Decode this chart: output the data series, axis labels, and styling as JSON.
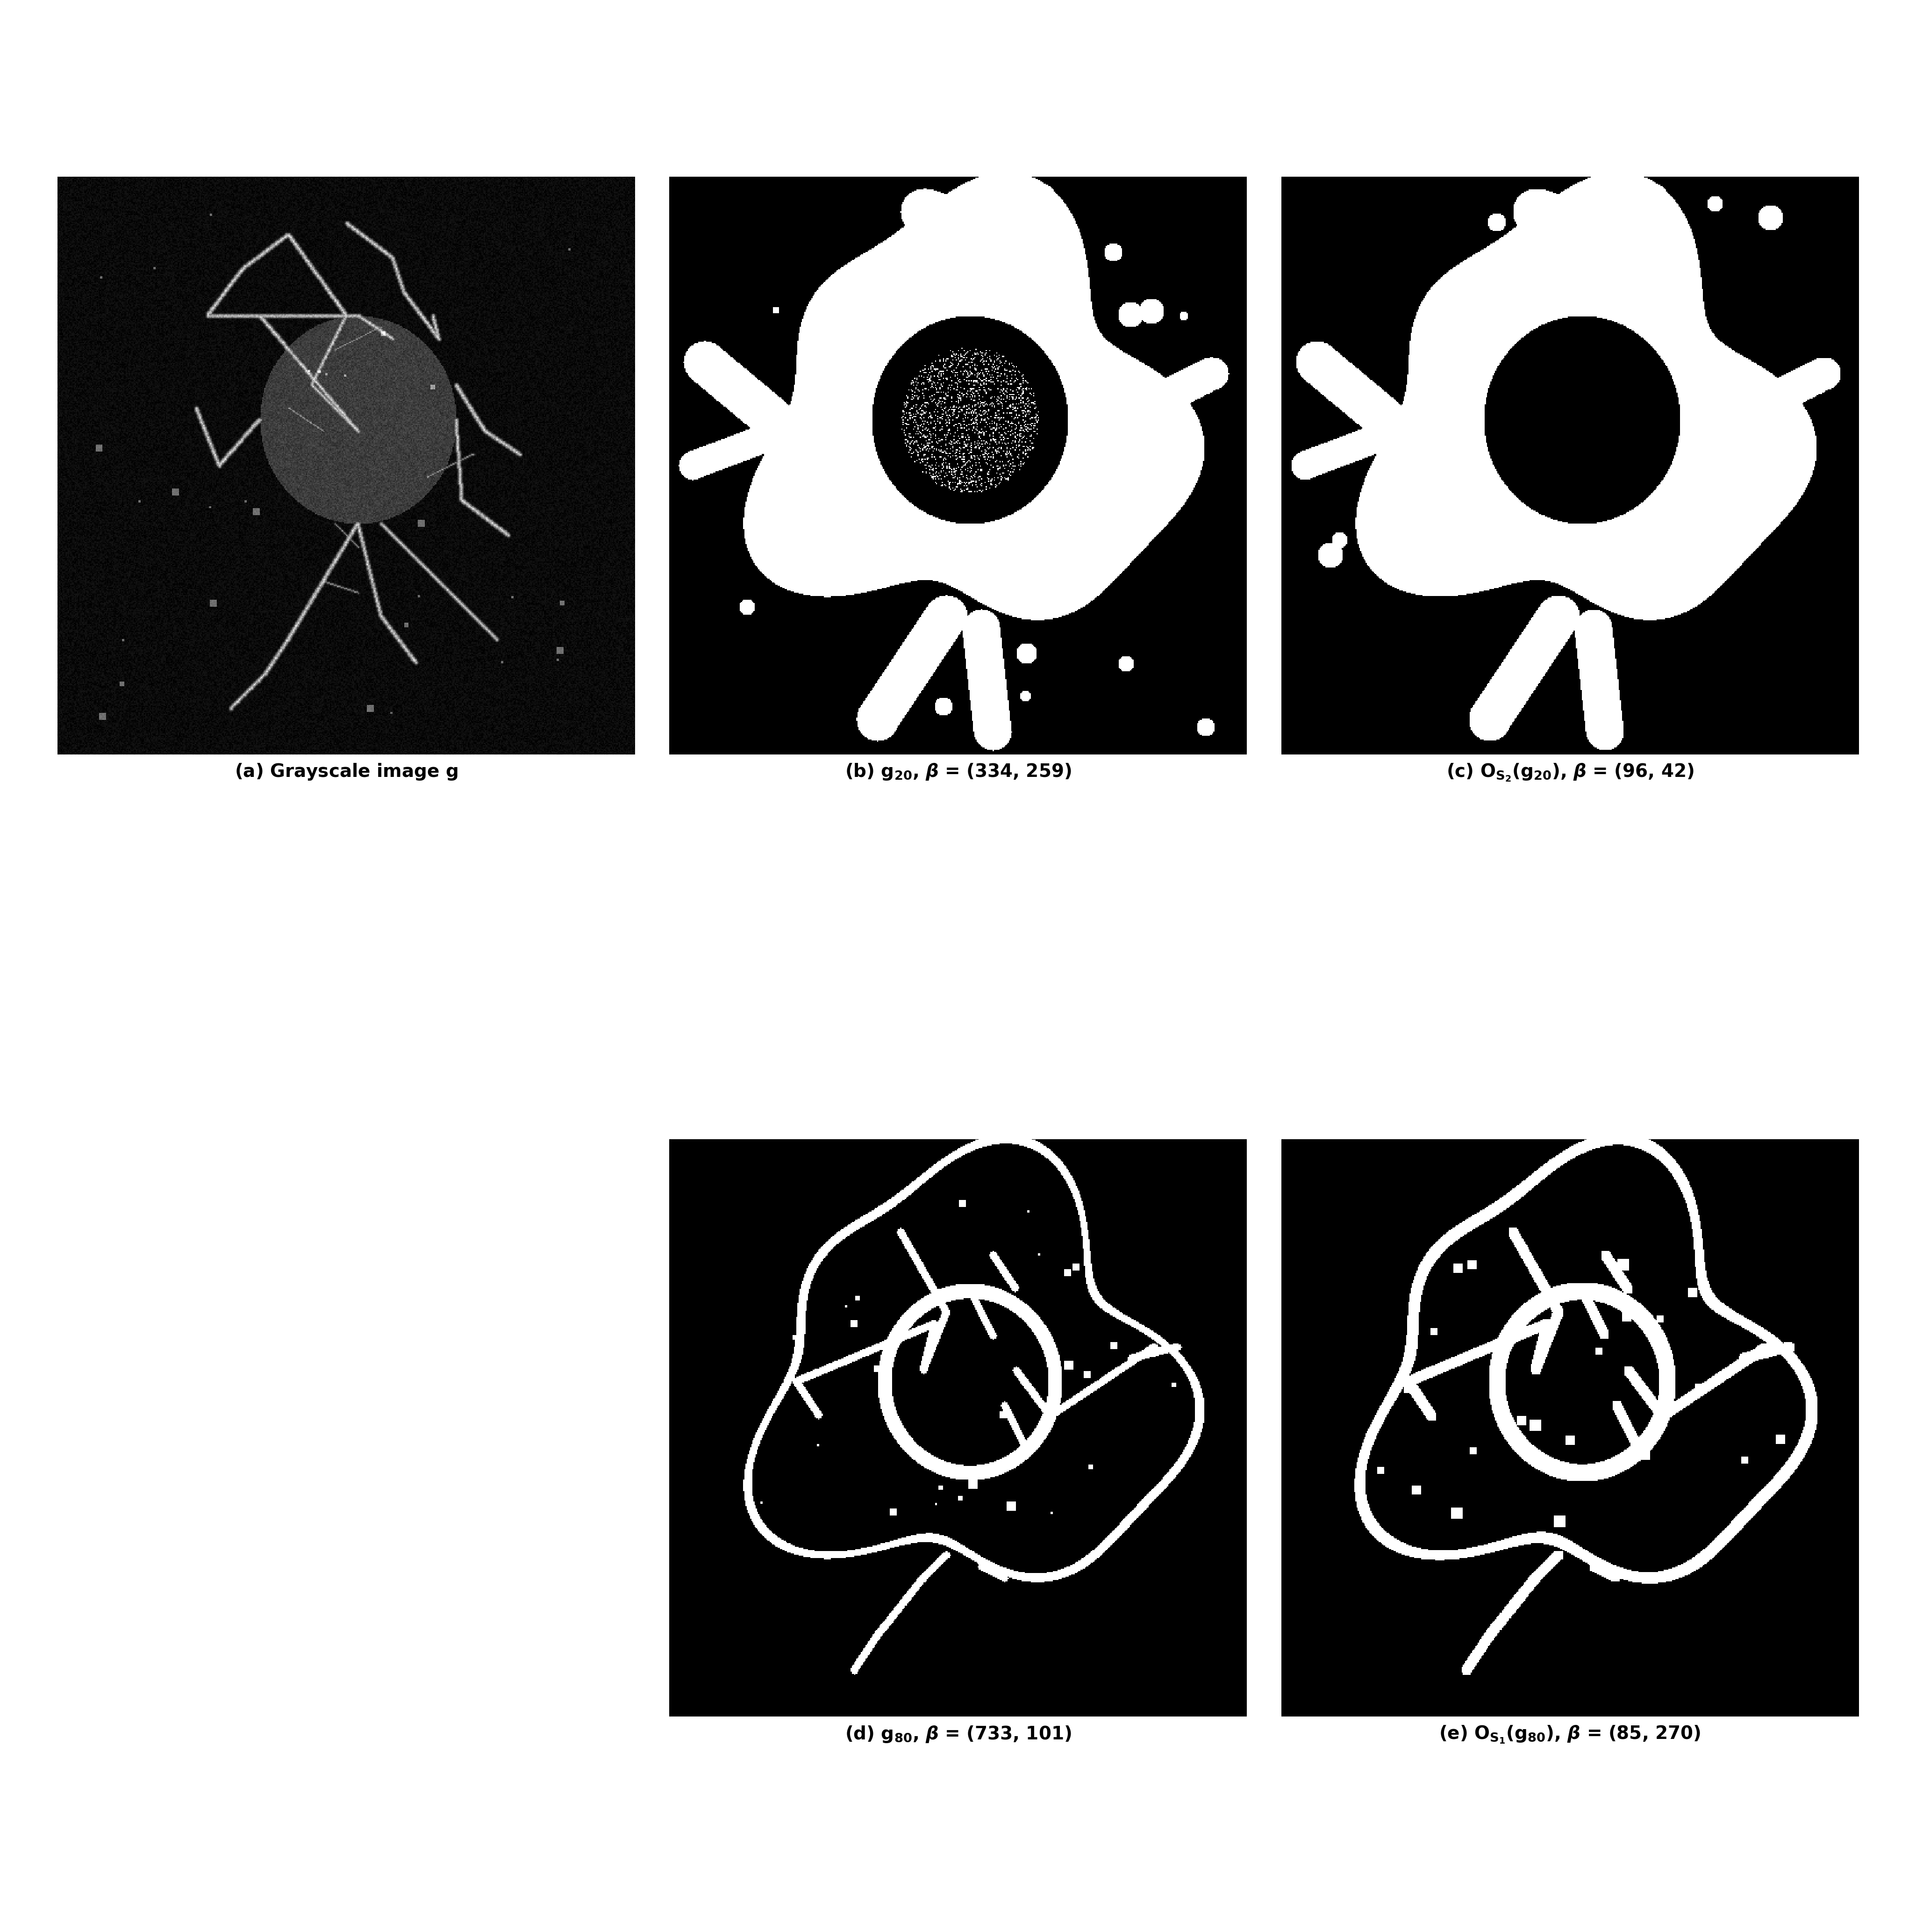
{
  "panels": [
    "a",
    "b",
    "c",
    "d",
    "e"
  ],
  "labels": {
    "a": "(a) Grayscale image $\\mathbf{g}$",
    "b": "(b) $\\mathbf{g_{20}}$, $\\boldsymbol{\\beta}$ = (334, 259)",
    "c": "(c) $\\mathbf{O_{S_2}(g_{20})}$, $\\boldsymbol{\\beta}$ = (96, 42)",
    "d": "(d) $\\mathbf{g_{80}}$, $\\boldsymbol{\\beta}$ = (733, 101)",
    "e": "(e) $\\mathbf{O_{S_1}(g_{80})}$, $\\boldsymbol{\\beta}$ = (85, 270)"
  },
  "background_color": "#ffffff",
  "image_bg": "#000000",
  "label_fontsize": 28,
  "fig_width": 41.0,
  "fig_height": 41.33
}
